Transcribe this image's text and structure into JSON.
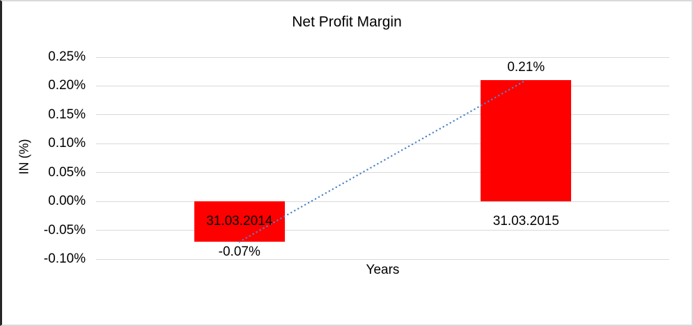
{
  "chart_data": {
    "type": "bar",
    "title": "Net Profit Margin",
    "xlabel": "Years",
    "ylabel": "IN (%)",
    "categories": [
      "31.03.2014",
      "31.03.2015"
    ],
    "series": [
      {
        "name": "Net Profit Margin",
        "values": [
          -0.07,
          0.21
        ]
      }
    ],
    "values": [
      -0.07,
      0.21
    ],
    "data_labels": [
      "-0.07%",
      "0.21%"
    ],
    "ylim": [
      -0.1,
      0.25
    ],
    "yticks": [
      0.25,
      0.2,
      0.15,
      0.1,
      0.05,
      0.0,
      -0.05,
      -0.1
    ],
    "ytick_labels": [
      "0.25%",
      "0.20%",
      "0.15%",
      "0.10%",
      "0.05%",
      "0.00%",
      "-0.05%",
      "-0.10%"
    ],
    "grid": true,
    "legend": "none",
    "bar_color": "#ff0000",
    "trendline": {
      "type": "linear",
      "style": "dotted",
      "color": "#4f86c6",
      "from_value": -0.07,
      "to_value": 0.21
    }
  },
  "colors": {
    "grid": "#d9d9d9",
    "text": "#000000",
    "bar": "#ff0000",
    "trendline": "#4f86c6",
    "frame_left": "#262626",
    "frame": "#d9d9d9"
  }
}
